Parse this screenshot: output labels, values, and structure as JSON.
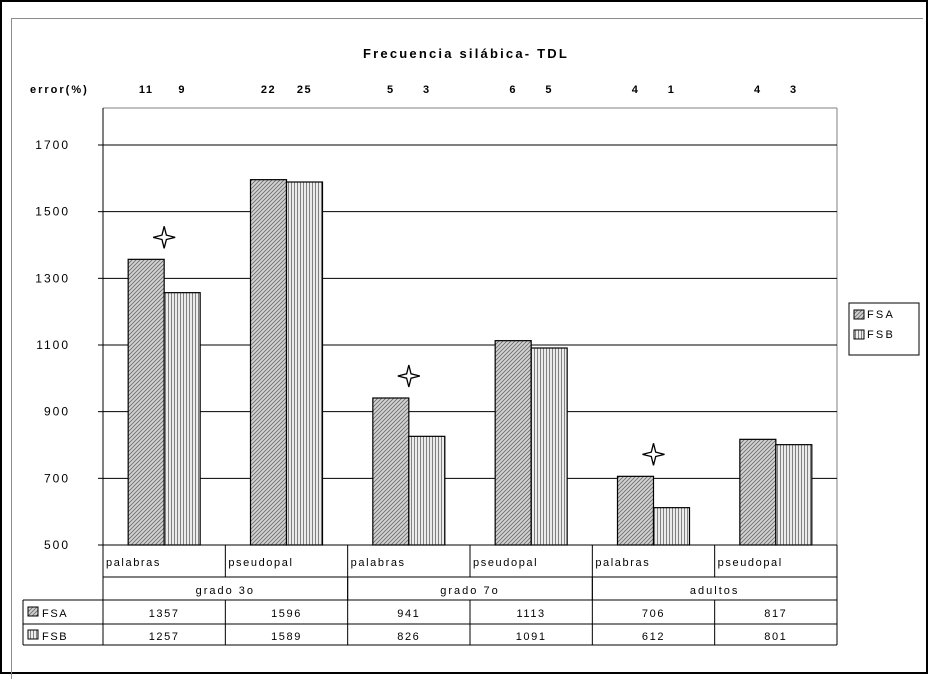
{
  "chart_data": {
    "type": "bar",
    "title": "Frecuencia silábica- TDL",
    "error_label": "error(%)",
    "groups": [
      "grado 3o",
      "grado 7o",
      "adultos"
    ],
    "categories": [
      "palabras",
      "pseudopal",
      "palabras",
      "pseudopal",
      "palabras",
      "pseudopal"
    ],
    "series": [
      {
        "name": "FSA",
        "values": [
          1357,
          1596,
          941,
          1113,
          706,
          817
        ],
        "errors": [
          11,
          22,
          5,
          6,
          4,
          4
        ]
      },
      {
        "name": "FSB",
        "values": [
          1257,
          1589,
          826,
          1091,
          612,
          801
        ],
        "errors": [
          9,
          25,
          3,
          5,
          1,
          3
        ]
      }
    ],
    "ylim": [
      500,
      1700
    ],
    "yticks": [
      500,
      700,
      900,
      1100,
      1300,
      1500,
      1700
    ],
    "grid": true,
    "legend": "right",
    "significance_markers": [
      0,
      2,
      4
    ],
    "colors": {
      "FSA": "#c0c0c0",
      "FSB": "#c8c8c8",
      "grid": "#000000",
      "plot_border": "#808080"
    }
  }
}
